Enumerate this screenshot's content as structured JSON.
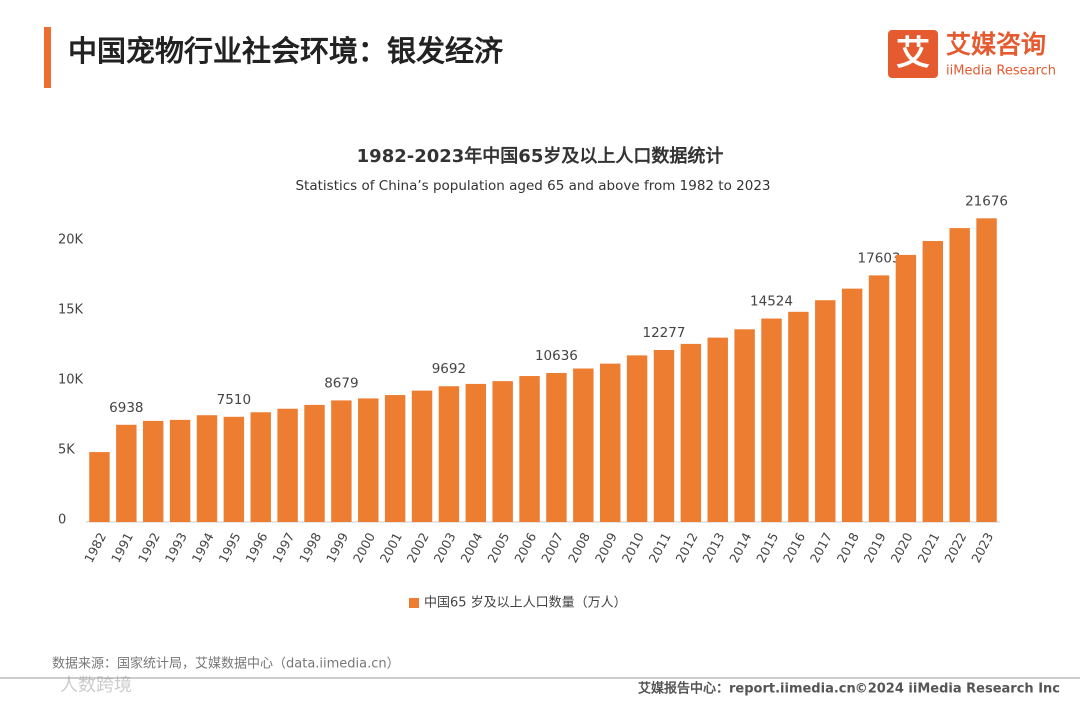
{
  "header": {
    "title": "中国宠物行业社会环境：银发经济",
    "logo_mark": "艾",
    "logo_name": "艾媒咨询",
    "logo_sub": "iiMedia Research"
  },
  "chart_data": {
    "type": "bar",
    "title": "1982-2023年中国65岁及以上人口数据统计",
    "subtitle": "Statistics of China’s population aged 65 and above from 1982 to 2023",
    "categories": [
      "1982",
      "1991",
      "1992",
      "1993",
      "1994",
      "1995",
      "1996",
      "1997",
      "1998",
      "1999",
      "2000",
      "2001",
      "2002",
      "2003",
      "2004",
      "2005",
      "2006",
      "2007",
      "2008",
      "2009",
      "2010",
      "2011",
      "2012",
      "2013",
      "2014",
      "2015",
      "2016",
      "2017",
      "2018",
      "2019",
      "2020",
      "2021",
      "2022",
      "2023"
    ],
    "series": [
      {
        "name": "中国65 岁及以上人口数量（万人）",
        "color": "#ed7d31",
        "values": [
          4991,
          6938,
          7218,
          7289,
          7622,
          7510,
          7833,
          8085,
          8359,
          8679,
          8821,
          9062,
          9377,
          9692,
          9857,
          10055,
          10419,
          10636,
          10956,
          11307,
          11894,
          12277,
          12714,
          13161,
          13755,
          14524,
          15003,
          15831,
          16658,
          17603,
          19064,
          20056,
          20978,
          21676
        ],
        "value_labels": [
          null,
          "6938",
          null,
          null,
          null,
          "7510",
          null,
          null,
          null,
          "8679",
          null,
          null,
          null,
          "9692",
          null,
          null,
          null,
          "10636",
          null,
          null,
          null,
          "12277",
          null,
          null,
          null,
          "14524",
          null,
          null,
          null,
          "17603",
          null,
          null,
          null,
          "21676"
        ]
      }
    ],
    "ylim": [
      0,
      20700
    ],
    "yticks": [
      0,
      {
        "value": 5000,
        "label": "5K"
      },
      {
        "value": 10000,
        "label": "10K"
      },
      {
        "value": 15000,
        "label": "15K"
      },
      {
        "value": 20000,
        "label": "20K"
      }
    ],
    "grid": false,
    "legend": "bottom"
  },
  "footer": {
    "source": "数据来源：国家统计局，艾媒数据中心（data.iimedia.cn）",
    "report_center": "艾媒报告中心：report.iimedia.cn",
    "copyright": "©2024  iiMedia Research  Inc",
    "watermark": "人数跨境"
  }
}
